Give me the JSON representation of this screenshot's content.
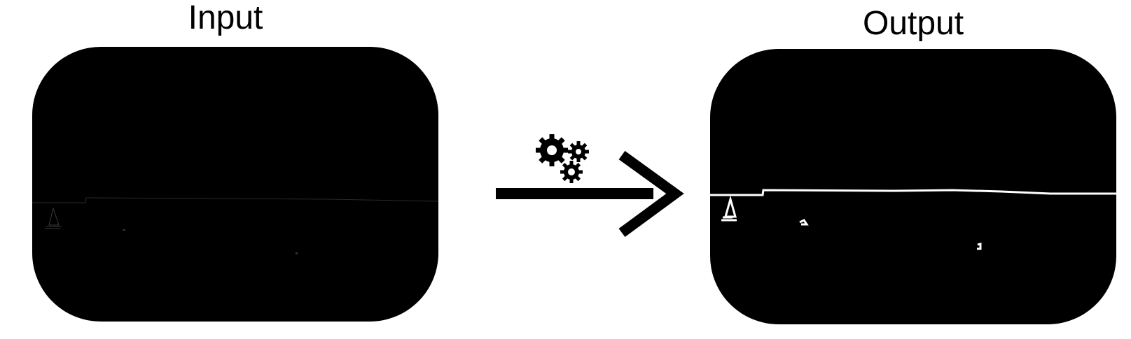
{
  "labels": {
    "input_title": "Input",
    "output_title": "Output"
  },
  "icons": {
    "process": "gears-icon",
    "direction": "arrow-right-icon"
  },
  "colors": {
    "panel_fill": "#000000",
    "background": "#ffffff",
    "edge_line": "#ffffff"
  }
}
